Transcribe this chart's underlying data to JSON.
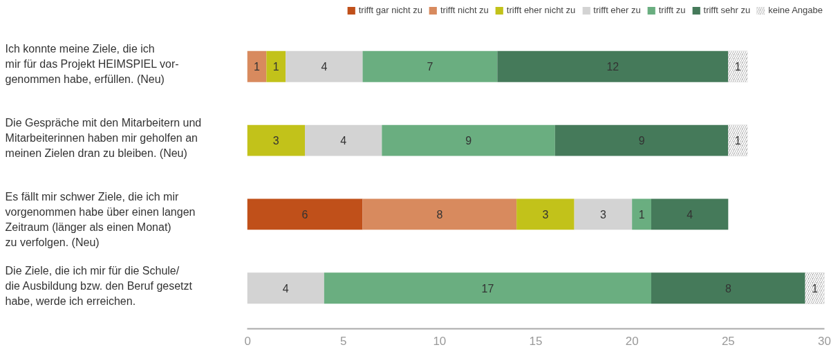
{
  "chart_data": {
    "type": "bar",
    "orientation": "horizontal",
    "stacked": true,
    "data_labels": true,
    "legend": "top",
    "grid": false,
    "categories": [
      "Ich konnte meine Ziele, die ich\nmir für das Projekt HEIMSPIEL vor-\ngenommen habe, erfüllen. (Neu)",
      "Die Gespräche mit den Mitarbeitern und\nMitarbeiterinnen haben mir geholfen an\nmeinen Zielen dran zu bleiben. (Neu)",
      "Es fällt mir schwer Ziele, die ich mir\nvorgenommen habe über einen langen\nZeitraum (länger als einen Monat)\nzu verfolgen. (Neu)",
      "Die Ziele, die ich mir für die Schule/\ndie Ausbildung bzw. den Beruf gesetzt\nhabe, werde ich erreichen."
    ],
    "xlim": [
      0,
      30
    ],
    "xticks": [
      0,
      5,
      10,
      15,
      20,
      25,
      30
    ],
    "series": [
      {
        "name": "trifft gar nicht zu",
        "color": "#c0501a",
        "values": [
          null,
          null,
          6,
          null
        ]
      },
      {
        "name": "trifft nicht zu",
        "color": "#d88a5e",
        "values": [
          1,
          null,
          8,
          null
        ]
      },
      {
        "name": "trifft eher nicht zu",
        "color": "#c2c21a",
        "values": [
          1,
          3,
          3,
          null
        ]
      },
      {
        "name": "trifft eher zu",
        "color": "#d3d3d3",
        "values": [
          4,
          4,
          3,
          4
        ]
      },
      {
        "name": "trifft zu",
        "color": "#6aae80",
        "values": [
          7,
          9,
          1,
          17
        ]
      },
      {
        "name": "trifft sehr zu",
        "color": "#457a5a",
        "values": [
          12,
          9,
          4,
          8
        ]
      },
      {
        "name": "keine Angabe",
        "color": "#9a9a9a",
        "values": [
          1,
          1,
          null,
          1
        ]
      }
    ]
  }
}
